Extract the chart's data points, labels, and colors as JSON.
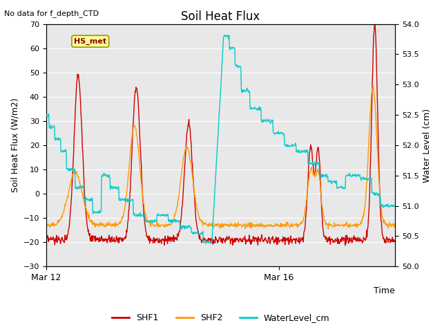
{
  "title": "Soil Heat Flux",
  "top_left_text": "No data for f_depth_CTD",
  "ylabel_left": "Soil Heat Flux (W/m2)",
  "ylabel_right": "Water Level (cm)",
  "xlabel": "Time",
  "annotation_box": "HS_met",
  "ylim_left": [
    -30,
    70
  ],
  "ylim_right": [
    50.0,
    54.0
  ],
  "xtick_labels": [
    "Mar 12",
    "Mar 16"
  ],
  "xtick_positions": [
    0,
    4
  ],
  "xlim": [
    0,
    6
  ],
  "yticks_left": [
    -30,
    -20,
    -10,
    0,
    10,
    20,
    30,
    40,
    50,
    60,
    70
  ],
  "yticks_right": [
    50.0,
    50.5,
    51.0,
    51.5,
    52.0,
    52.5,
    53.0,
    53.5,
    54.0
  ],
  "shf1_color": "#cc0000",
  "shf2_color": "#ff9900",
  "water_color": "#00cccc",
  "plot_bg_color": "#e8e8e8",
  "grid_color": "#ffffff",
  "legend_labels": [
    "SHF1",
    "SHF2",
    "WaterLevel_cm"
  ],
  "figsize": [
    6.4,
    4.8
  ],
  "dpi": 100
}
